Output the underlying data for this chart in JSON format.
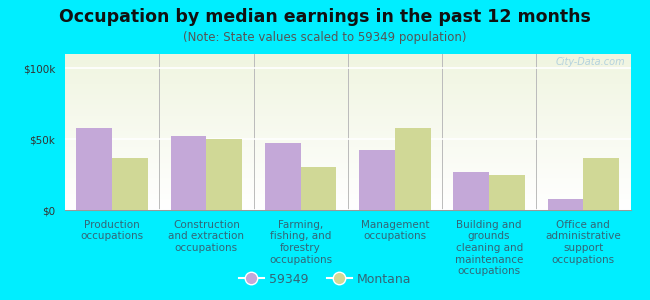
{
  "title": "Occupation by median earnings in the past 12 months",
  "subtitle": "(Note: State values scaled to 59349 population)",
  "categories": [
    "Production\noccupations",
    "Construction\nand extraction\noccupations",
    "Farming,\nfishing, and\nforestry\noccupations",
    "Management\noccupations",
    "Building and\ngrounds\ncleaning and\nmaintenance\noccupations",
    "Office and\nadministrative\nsupport\noccupations"
  ],
  "values_59349": [
    58000,
    52000,
    47000,
    42000,
    27000,
    8000
  ],
  "values_montana": [
    37000,
    50000,
    30000,
    58000,
    25000,
    37000
  ],
  "color_59349": "#c4a8d8",
  "color_montana": "#d0d896",
  "outer_bg": "#00eeff",
  "plot_bg_top": "#f0f5e0",
  "plot_bg_bottom": "#ffffff",
  "ylim": [
    0,
    110000
  ],
  "yticks": [
    0,
    50000,
    100000
  ],
  "ytick_labels": [
    "$0",
    "$50k",
    "$100k"
  ],
  "legend_label_1": "59349",
  "legend_label_2": "Montana",
  "bar_width": 0.38,
  "title_fontsize": 12.5,
  "subtitle_fontsize": 8.5,
  "tick_fontsize": 7.5,
  "legend_fontsize": 9,
  "watermark": "City-Data.com"
}
